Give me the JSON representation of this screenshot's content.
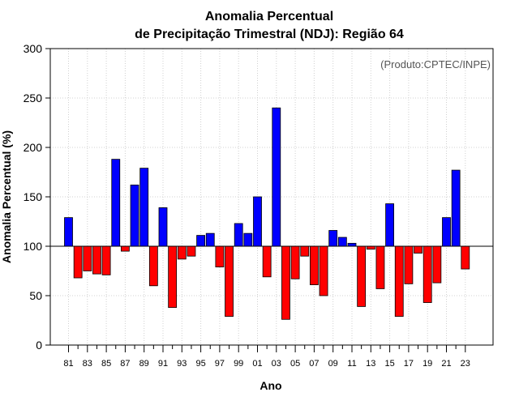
{
  "chart_data": {
    "type": "bar",
    "title_line1": "Anomalia Percentual",
    "title_line2": "de Precipitação Trimestral (NDJ): Região 64",
    "xlabel": "Ano",
    "ylabel": "Anomalia Percentual (%)",
    "credit": "(Produto:CPTEC/INPE)",
    "ylim": [
      0,
      300
    ],
    "yticks": [
      0,
      50,
      100,
      150,
      200,
      250,
      300
    ],
    "baseline": 100,
    "grid": true,
    "colors": {
      "above": "#0000ff",
      "below": "#ff0000",
      "outline": "#000000",
      "grid": "#d0d0d0"
    },
    "categories": [
      "81",
      "82",
      "83",
      "84",
      "85",
      "86",
      "87",
      "88",
      "89",
      "90",
      "91",
      "92",
      "93",
      "94",
      "95",
      "96",
      "97",
      "98",
      "99",
      "00",
      "01",
      "02",
      "03",
      "04",
      "05",
      "06",
      "07",
      "08",
      "09",
      "10",
      "11",
      "12",
      "13",
      "14",
      "15",
      "16",
      "17",
      "18",
      "19",
      "20",
      "21",
      "22",
      "23"
    ],
    "xtick_labels": [
      "81",
      "83",
      "85",
      "87",
      "89",
      "91",
      "93",
      "95",
      "97",
      "99",
      "01",
      "03",
      "05",
      "07",
      "09",
      "11",
      "13",
      "15",
      "17",
      "19",
      "21",
      "23"
    ],
    "values": [
      129,
      68,
      75,
      72,
      71,
      188,
      95,
      162,
      179,
      60,
      139,
      38,
      87,
      90,
      111,
      113,
      79,
      29,
      123,
      113,
      150,
      69,
      240,
      26,
      67,
      90,
      61,
      50,
      116,
      109,
      103,
      39,
      97,
      57,
      143,
      29,
      62,
      93,
      43,
      63,
      129,
      177,
      77
    ]
  }
}
